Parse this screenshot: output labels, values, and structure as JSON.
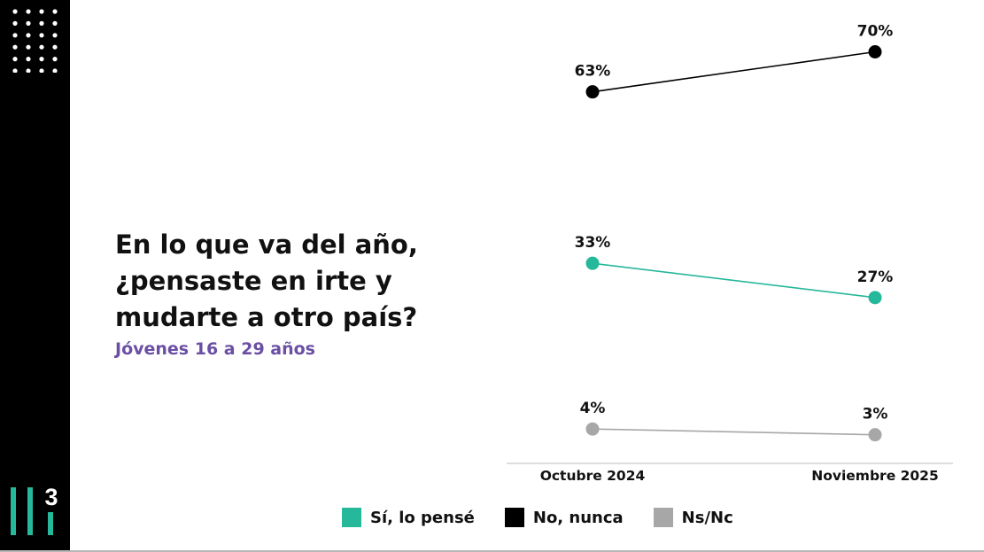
{
  "question": {
    "lines": [
      "En lo que va del año,",
      "¿pensaste en irte y",
      "mudarte a otro país?"
    ],
    "subtitle": "Jóvenes 16 a 29 años"
  },
  "brand": {
    "logo_text": "3",
    "logo_color": "#26b89b"
  },
  "chart_data": {
    "type": "line",
    "categories": [
      "Octubre 2024",
      "Noviembre 2025"
    ],
    "unit": "%",
    "series": [
      {
        "name": "Sí, lo pensé",
        "values": [
          33,
          27
        ],
        "color": "#26b89b"
      },
      {
        "name": "No, nunca",
        "values": [
          63,
          70
        ],
        "color": "#000000"
      },
      {
        "name": "Ns/Nc",
        "values": [
          4,
          3
        ],
        "color": "#a7a7a7"
      }
    ],
    "ylim": [
      0,
      70
    ],
    "grid": false,
    "legend_position": "bottom"
  },
  "legend": [
    {
      "label": "Sí, lo pensé",
      "color": "#26b89b"
    },
    {
      "label": "No, nunca",
      "color": "#000000"
    },
    {
      "label": "Ns/Nc",
      "color": "#a7a7a7"
    }
  ]
}
